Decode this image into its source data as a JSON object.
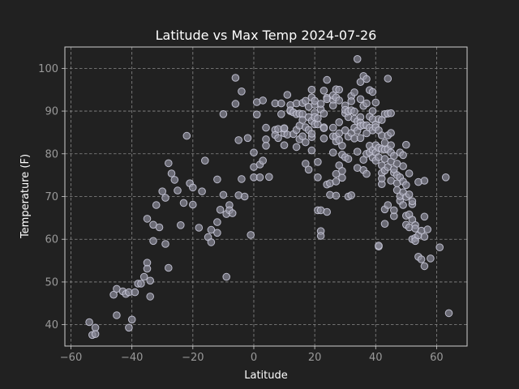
{
  "chart_data": {
    "type": "scatter",
    "title": "Latitude vs Max Temp 2024-07-26",
    "xlabel": "Latitude",
    "ylabel": "Temperature (F)",
    "xlim": [
      -62,
      70
    ],
    "ylim": [
      35,
      105
    ],
    "xticks": [
      -60,
      -40,
      -20,
      0,
      20,
      40,
      60
    ],
    "yticks": [
      40,
      50,
      60,
      70,
      80,
      90,
      100
    ],
    "grid": true,
    "marker": {
      "face": "#8a8a98",
      "edge": "#c8c8d8",
      "alpha": 0.7
    },
    "points": [
      [
        -54,
        40.6
      ],
      [
        -53,
        37.6
      ],
      [
        -52,
        39.3
      ],
      [
        -52,
        37.8
      ],
      [
        -46,
        47.0
      ],
      [
        -45,
        48.4
      ],
      [
        -45,
        42.2
      ],
      [
        -43,
        47.8
      ],
      [
        -42,
        47.2
      ],
      [
        -41,
        39.3
      ],
      [
        -41,
        47.6
      ],
      [
        -40,
        41.2
      ],
      [
        -39,
        47.6
      ],
      [
        -38,
        49.6
      ],
      [
        -37,
        49.6
      ],
      [
        -36,
        51.2
      ],
      [
        -35,
        54.5
      ],
      [
        -35,
        64.8
      ],
      [
        -35,
        53.1
      ],
      [
        -34,
        46.6
      ],
      [
        -34,
        50.3
      ],
      [
        -33,
        63.4
      ],
      [
        -33,
        59.6
      ],
      [
        -32,
        68.0
      ],
      [
        -31,
        62.8
      ],
      [
        -30,
        71.2
      ],
      [
        -29,
        58.9
      ],
      [
        -29,
        69.7
      ],
      [
        -28,
        53.3
      ],
      [
        -28,
        77.8
      ],
      [
        -27,
        75.4
      ],
      [
        -26,
        73.9
      ],
      [
        -25,
        71.4
      ],
      [
        -24,
        63.3
      ],
      [
        -23,
        68.5
      ],
      [
        -22,
        84.2
      ],
      [
        -21,
        73.1
      ],
      [
        -20,
        72.1
      ],
      [
        -20,
        68.1
      ],
      [
        -18,
        62.7
      ],
      [
        -17,
        71.2
      ],
      [
        -16,
        78.4
      ],
      [
        -15,
        60.5
      ],
      [
        -14,
        62.2
      ],
      [
        -14,
        59.3
      ],
      [
        -12,
        61.5
      ],
      [
        -12,
        64.0
      ],
      [
        -12,
        74.0
      ],
      [
        -11,
        66.9
      ],
      [
        -10,
        70.4
      ],
      [
        -10,
        89.3
      ],
      [
        -9,
        51.2
      ],
      [
        -9,
        65.9
      ],
      [
        -8,
        68.0
      ],
      [
        -8,
        66.8
      ],
      [
        -7,
        66.1
      ],
      [
        -6,
        97.8
      ],
      [
        -6,
        91.7
      ],
      [
        -5,
        83.2
      ],
      [
        -5,
        70.3
      ],
      [
        -4,
        74.1
      ],
      [
        -4,
        94.6
      ],
      [
        -3,
        70.0
      ],
      [
        -2,
        83.7
      ],
      [
        -1,
        61.0
      ],
      [
        0,
        74.5
      ],
      [
        0,
        80.3
      ],
      [
        0,
        76.9
      ],
      [
        1,
        92.1
      ],
      [
        1,
        89.2
      ],
      [
        2,
        74.5
      ],
      [
        2,
        77.5
      ],
      [
        3,
        92.5
      ],
      [
        3,
        78.4
      ],
      [
        4,
        83.4
      ],
      [
        4,
        86.1
      ],
      [
        4,
        81.9
      ],
      [
        5,
        74.6
      ],
      [
        7,
        91.8
      ],
      [
        7,
        85.6
      ],
      [
        7,
        84.4
      ],
      [
        8,
        85.8
      ],
      [
        8,
        83.7
      ],
      [
        9,
        91.8
      ],
      [
        9,
        89.3
      ],
      [
        10,
        84.8
      ],
      [
        10,
        85.9
      ],
      [
        10,
        82.0
      ],
      [
        10,
        86.0
      ],
      [
        11,
        84.5
      ],
      [
        11,
        93.8
      ],
      [
        12,
        91.4
      ],
      [
        12,
        90.0
      ],
      [
        12,
        90.2
      ],
      [
        13,
        84.6
      ],
      [
        13,
        89.7
      ],
      [
        14,
        85.6
      ],
      [
        14,
        81.6
      ],
      [
        14,
        91.8
      ],
      [
        14,
        89.3
      ],
      [
        15,
        83.4
      ],
      [
        15,
        89.4
      ],
      [
        15,
        86.6
      ],
      [
        16,
        91.9
      ],
      [
        16,
        89.3
      ],
      [
        16,
        84.1
      ],
      [
        16,
        87.9
      ],
      [
        17,
        82.7
      ],
      [
        17,
        86.2
      ],
      [
        17,
        77.7
      ],
      [
        17,
        92.4
      ],
      [
        18,
        76.3
      ],
      [
        18,
        85.6
      ],
      [
        18,
        88.6
      ],
      [
        18,
        91.0
      ],
      [
        19,
        87.7
      ],
      [
        19,
        83.9
      ],
      [
        19,
        95.0
      ],
      [
        19,
        80.8
      ],
      [
        19,
        93.2
      ],
      [
        19,
        84.7
      ],
      [
        20,
        89.6
      ],
      [
        20,
        91.5
      ],
      [
        20,
        86.9
      ],
      [
        20,
        92.4
      ],
      [
        20,
        88.6
      ],
      [
        21,
        86.9
      ],
      [
        21,
        66.8
      ],
      [
        21,
        78.1
      ],
      [
        21,
        74.5
      ],
      [
        21,
        88.3
      ],
      [
        22,
        90.4
      ],
      [
        22,
        61.9
      ],
      [
        22,
        60.8
      ],
      [
        22,
        66.8
      ],
      [
        22,
        91.7
      ],
      [
        23,
        94.8
      ],
      [
        23,
        89.4
      ],
      [
        23,
        86.2
      ],
      [
        23,
        86.0
      ],
      [
        23,
        83.6
      ],
      [
        24,
        93.1
      ],
      [
        24,
        92.8
      ],
      [
        24,
        97.3
      ],
      [
        24,
        66.4
      ],
      [
        24,
        72.8
      ],
      [
        25,
        73.1
      ],
      [
        25,
        70.4
      ],
      [
        26,
        84.1
      ],
      [
        26,
        80.3
      ],
      [
        26,
        92.6
      ],
      [
        26,
        93.7
      ],
      [
        26,
        86.1
      ],
      [
        26,
        91.3
      ],
      [
        27,
        93.2
      ],
      [
        27,
        95.1
      ],
      [
        27,
        82.9
      ],
      [
        27,
        70.2
      ],
      [
        27,
        73.5
      ],
      [
        27,
        75.3
      ],
      [
        27,
        84.1
      ],
      [
        28,
        87.4
      ],
      [
        28,
        77.3
      ],
      [
        28,
        83.2
      ],
      [
        28,
        92.5
      ],
      [
        28,
        84.8
      ],
      [
        28,
        95.0
      ],
      [
        29,
        74.4
      ],
      [
        29,
        81.9
      ],
      [
        29,
        79.8
      ],
      [
        29,
        76.0
      ],
      [
        30,
        85.5
      ],
      [
        30,
        79.2
      ],
      [
        30,
        91.3
      ],
      [
        30,
        89.5
      ],
      [
        30,
        90.3
      ],
      [
        31,
        70.0
      ],
      [
        31,
        88.6
      ],
      [
        31,
        78.8
      ],
      [
        31,
        84.0
      ],
      [
        31,
        89.9
      ],
      [
        32,
        84.9
      ],
      [
        32,
        93.5
      ],
      [
        32,
        70.3
      ],
      [
        32,
        90.2
      ],
      [
        32,
        92.3
      ],
      [
        33,
        83.6
      ],
      [
        33,
        94.4
      ],
      [
        33,
        86.1
      ],
      [
        33,
        88.2
      ],
      [
        33,
        89.9
      ],
      [
        34,
        87.6
      ],
      [
        34,
        76.7
      ],
      [
        34,
        85.4
      ],
      [
        34,
        102.2
      ],
      [
        34,
        80.5
      ],
      [
        35,
        83.7
      ],
      [
        35,
        96.8
      ],
      [
        35,
        88.6
      ],
      [
        35,
        87.3
      ],
      [
        35,
        92.8
      ],
      [
        35,
        86.5
      ],
      [
        36,
        78.6
      ],
      [
        36,
        91.2
      ],
      [
        36,
        86.7
      ],
      [
        36,
        98.2
      ],
      [
        36,
        76.2
      ],
      [
        37,
        97.5
      ],
      [
        37,
        86.7
      ],
      [
        37,
        84.8
      ],
      [
        37,
        80.0
      ],
      [
        37,
        91.8
      ],
      [
        37,
        75.3
      ],
      [
        38,
        86.1
      ],
      [
        38,
        88.7
      ],
      [
        38,
        94.9
      ],
      [
        38,
        80.3
      ],
      [
        38,
        81.9
      ],
      [
        39,
        85.5
      ],
      [
        39,
        94.5
      ],
      [
        39,
        80.9
      ],
      [
        39,
        79.1
      ],
      [
        39,
        90.0
      ],
      [
        39,
        88.1
      ],
      [
        40,
        82.0
      ],
      [
        40,
        80.3
      ],
      [
        40,
        92.0
      ],
      [
        40,
        86.9
      ],
      [
        40,
        78.4
      ],
      [
        40,
        86.2
      ],
      [
        41,
        85.5
      ],
      [
        41,
        58.3
      ],
      [
        41,
        58.5
      ],
      [
        41,
        81.4
      ],
      [
        41,
        79.2
      ],
      [
        41,
        88.1
      ],
      [
        42,
        87.9
      ],
      [
        42,
        75.5
      ],
      [
        42,
        84.3
      ],
      [
        42,
        81.1
      ],
      [
        42,
        72.9
      ],
      [
        42,
        77.3
      ],
      [
        42,
        74.2
      ],
      [
        43,
        82.6
      ],
      [
        43,
        89.3
      ],
      [
        43,
        63.6
      ],
      [
        43,
        76.1
      ],
      [
        43,
        81.0
      ],
      [
        43,
        67.0
      ],
      [
        43,
        78.8
      ],
      [
        44,
        97.6
      ],
      [
        44,
        89.4
      ],
      [
        44,
        76.9
      ],
      [
        44,
        84.3
      ],
      [
        44,
        81.1
      ],
      [
        44,
        68.0
      ],
      [
        45,
        80.3
      ],
      [
        45,
        82.0
      ],
      [
        45,
        73.7
      ],
      [
        45,
        89.5
      ],
      [
        45,
        84.9
      ],
      [
        45,
        78.2
      ],
      [
        46,
        79.5
      ],
      [
        46,
        65.4
      ],
      [
        46,
        75.6
      ],
      [
        46,
        66.8
      ],
      [
        46,
        76.4
      ],
      [
        47,
        73.1
      ],
      [
        47,
        77.7
      ],
      [
        47,
        71.5
      ],
      [
        47,
        75.0
      ],
      [
        48,
        80.3
      ],
      [
        48,
        69.0
      ],
      [
        48,
        70.1
      ],
      [
        48,
        74.5
      ],
      [
        49,
        79.7
      ],
      [
        49,
        68.0
      ],
      [
        49,
        77.1
      ],
      [
        49,
        73.5
      ],
      [
        49,
        71.0
      ],
      [
        50,
        82.1
      ],
      [
        50,
        65.5
      ],
      [
        50,
        63.4
      ],
      [
        50,
        69.9
      ],
      [
        50,
        72.7
      ],
      [
        51,
        65.8
      ],
      [
        51,
        62.8
      ],
      [
        51,
        75.4
      ],
      [
        51,
        70.5
      ],
      [
        52,
        68.2
      ],
      [
        52,
        64.6
      ],
      [
        52,
        60.0
      ],
      [
        52,
        68.9
      ],
      [
        53,
        63.3
      ],
      [
        53,
        60.3
      ],
      [
        53,
        59.6
      ],
      [
        53,
        62.5
      ],
      [
        54,
        73.4
      ],
      [
        54,
        60.9
      ],
      [
        54,
        55.9
      ],
      [
        55,
        55.3
      ],
      [
        55,
        62.0
      ],
      [
        56,
        60.6
      ],
      [
        56,
        73.7
      ],
      [
        56,
        53.7
      ],
      [
        56,
        65.3
      ],
      [
        57,
        62.3
      ],
      [
        58,
        55.5
      ],
      [
        61,
        58.1
      ],
      [
        63,
        74.5
      ],
      [
        64,
        42.7
      ]
    ]
  }
}
